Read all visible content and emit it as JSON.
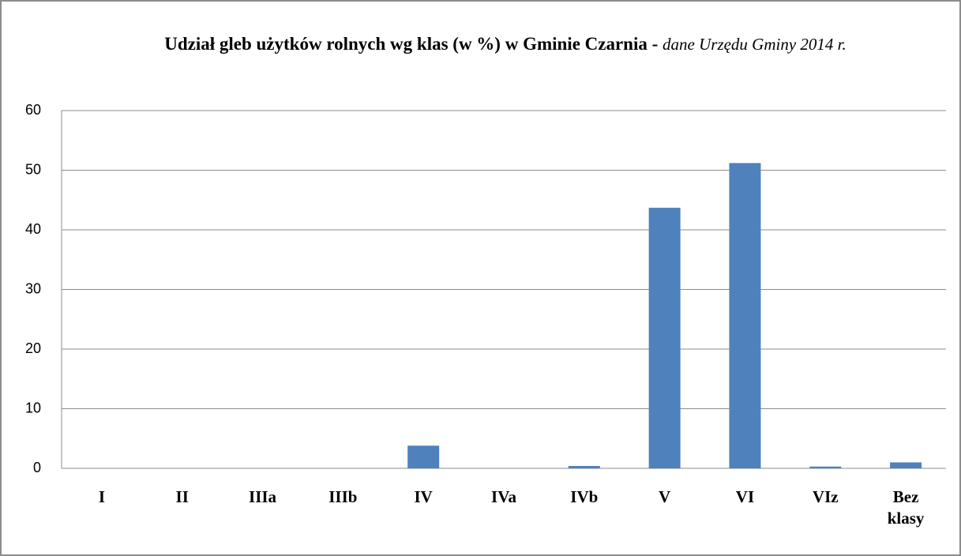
{
  "chart_data": {
    "type": "bar",
    "title": "Udział gleb użytków rolnych wg klas (w %) w Gminie Czarnia -",
    "subtitle": "dane Urzędu Gminy 2014 r.",
    "categories": [
      "I",
      "II",
      "IIIa",
      "IIIb",
      "IV",
      "IVa",
      "IVb",
      "V",
      "VI",
      "VIz",
      "Bez klasy"
    ],
    "values": [
      0,
      0,
      0,
      0,
      3.8,
      0,
      0.4,
      43.7,
      51.2,
      0.3,
      1.0
    ],
    "color": "#4f81bd",
    "ylim": [
      0,
      60
    ],
    "yticks": [
      0,
      10,
      20,
      30,
      40,
      50,
      60
    ],
    "grid": true
  }
}
